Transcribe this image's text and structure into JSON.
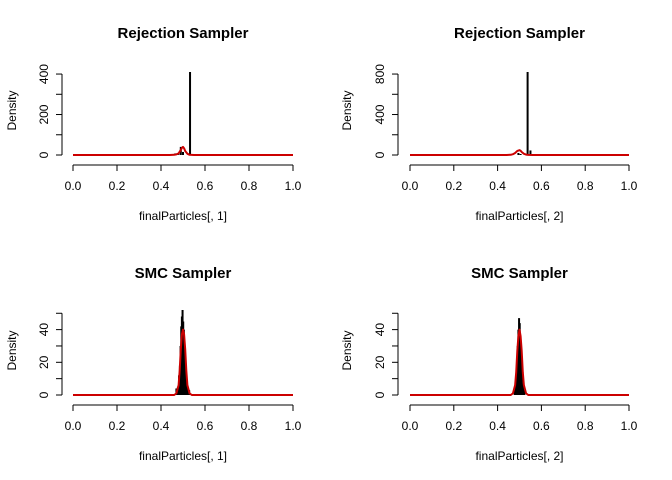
{
  "chart_data": [
    {
      "type": "line",
      "title": "Rejection Sampler",
      "xlabel": "finalParticles[, 1]",
      "ylabel": "Density",
      "xlim": [
        0,
        1
      ],
      "ylim": [
        0,
        420
      ],
      "xticks": [
        "0.0",
        "0.2",
        "0.4",
        "0.6",
        "0.8",
        "1.0"
      ],
      "yticks": [
        "0",
        "200",
        "400"
      ],
      "ytick_values": [
        0,
        200,
        400
      ],
      "yminor": [
        100,
        300
      ],
      "histogram": {
        "color": "#000000",
        "bins": [
          {
            "x": 0.465,
            "y": 8
          },
          {
            "x": 0.48,
            "y": 3
          },
          {
            "x": 0.49,
            "y": 40
          },
          {
            "x": 0.5,
            "y": 15
          },
          {
            "x": 0.532,
            "y": 410
          }
        ]
      },
      "series": [
        {
          "color": "#cc0000",
          "x": [
            0,
            0.44,
            0.46,
            0.47,
            0.48,
            0.49,
            0.495,
            0.5,
            0.505,
            0.51,
            0.52,
            0.53,
            0.55,
            1
          ],
          "y": [
            0,
            0,
            1,
            3,
            8,
            25,
            35,
            40,
            33,
            20,
            6,
            1,
            0,
            0
          ]
        }
      ]
    },
    {
      "type": "line",
      "title": "Rejection Sampler",
      "xlabel": "finalParticles[, 2]",
      "ylabel": "Density",
      "xlim": [
        0,
        1
      ],
      "ylim": [
        0,
        840
      ],
      "xticks": [
        "0.0",
        "0.2",
        "0.4",
        "0.6",
        "0.8",
        "1.0"
      ],
      "yticks": [
        "0",
        "400",
        "800"
      ],
      "ytick_values": [
        0,
        400,
        800
      ],
      "yminor": [
        200,
        600
      ],
      "histogram": {
        "color": "#000000",
        "bins": [
          {
            "x": 0.495,
            "y": 20
          },
          {
            "x": 0.505,
            "y": 10
          },
          {
            "x": 0.537,
            "y": 820
          },
          {
            "x": 0.55,
            "y": 45
          }
        ]
      },
      "series": [
        {
          "color": "#cc0000",
          "x": [
            0,
            0.44,
            0.46,
            0.47,
            0.48,
            0.49,
            0.5,
            0.505,
            0.51,
            0.52,
            0.53,
            0.54,
            0.56,
            1
          ],
          "y": [
            0,
            0,
            2,
            8,
            20,
            40,
            48,
            42,
            30,
            12,
            4,
            1,
            0,
            0
          ]
        }
      ]
    },
    {
      "type": "line",
      "title": "SMC Sampler",
      "xlabel": "finalParticles[, 1]",
      "ylabel": "Density",
      "xlim": [
        0,
        1
      ],
      "ylim": [
        0,
        52
      ],
      "xticks": [
        "0.0",
        "0.2",
        "0.4",
        "0.6",
        "0.8",
        "1.0"
      ],
      "yticks": [
        "0",
        "20",
        "40"
      ],
      "ytick_values": [
        0,
        20,
        40
      ],
      "yminor": [
        10,
        30,
        50
      ],
      "histogram": {
        "color": "#000000",
        "bins": [
          {
            "x": 0.47,
            "y": 4
          },
          {
            "x": 0.477,
            "y": 5
          },
          {
            "x": 0.482,
            "y": 12
          },
          {
            "x": 0.486,
            "y": 18
          },
          {
            "x": 0.489,
            "y": 30
          },
          {
            "x": 0.492,
            "y": 42
          },
          {
            "x": 0.495,
            "y": 48
          },
          {
            "x": 0.498,
            "y": 52
          },
          {
            "x": 0.501,
            "y": 45
          },
          {
            "x": 0.504,
            "y": 40
          },
          {
            "x": 0.507,
            "y": 30
          },
          {
            "x": 0.51,
            "y": 20
          },
          {
            "x": 0.514,
            "y": 10
          },
          {
            "x": 0.52,
            "y": 6
          },
          {
            "x": 0.528,
            "y": 3
          }
        ]
      },
      "series": [
        {
          "color": "#cc0000",
          "x": [
            0,
            0.46,
            0.47,
            0.48,
            0.485,
            0.49,
            0.495,
            0.5,
            0.505,
            0.51,
            0.515,
            0.52,
            0.53,
            0.54,
            1
          ],
          "y": [
            0,
            0,
            1,
            6,
            15,
            28,
            37,
            40,
            37,
            28,
            15,
            6,
            1,
            0,
            0
          ]
        }
      ]
    },
    {
      "type": "line",
      "title": "SMC Sampler",
      "xlabel": "finalParticles[, 2]",
      "ylabel": "Density",
      "xlim": [
        0,
        1
      ],
      "ylim": [
        0,
        52
      ],
      "xticks": [
        "0.0",
        "0.2",
        "0.4",
        "0.6",
        "0.8",
        "1.0"
      ],
      "yticks": [
        "0",
        "20",
        "40"
      ],
      "ytick_values": [
        0,
        20,
        40
      ],
      "yminor": [
        10,
        30,
        50
      ],
      "histogram": {
        "color": "#000000",
        "bins": [
          {
            "x": 0.478,
            "y": 3
          },
          {
            "x": 0.484,
            "y": 8
          },
          {
            "x": 0.488,
            "y": 18
          },
          {
            "x": 0.492,
            "y": 30
          },
          {
            "x": 0.495,
            "y": 40
          },
          {
            "x": 0.498,
            "y": 47
          },
          {
            "x": 0.501,
            "y": 44
          },
          {
            "x": 0.504,
            "y": 35
          },
          {
            "x": 0.507,
            "y": 25
          },
          {
            "x": 0.511,
            "y": 14
          },
          {
            "x": 0.516,
            "y": 7
          },
          {
            "x": 0.522,
            "y": 3
          }
        ]
      },
      "series": [
        {
          "color": "#cc0000",
          "x": [
            0,
            0.46,
            0.47,
            0.48,
            0.485,
            0.49,
            0.495,
            0.5,
            0.505,
            0.51,
            0.515,
            0.52,
            0.53,
            0.54,
            1
          ],
          "y": [
            0,
            0,
            1,
            6,
            14,
            27,
            36,
            40,
            36,
            27,
            14,
            6,
            1,
            0,
            0
          ]
        }
      ]
    }
  ]
}
